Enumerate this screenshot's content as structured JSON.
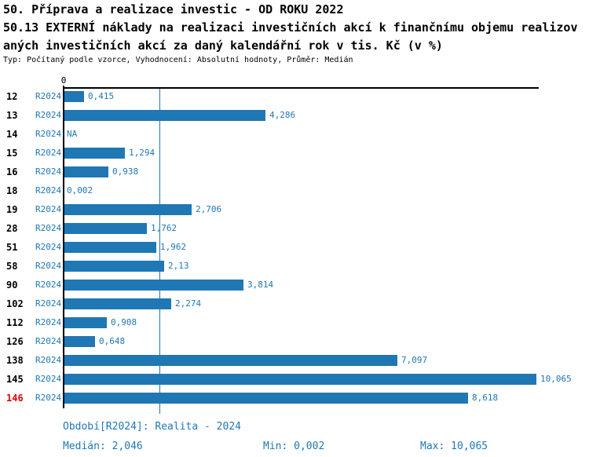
{
  "header": {
    "title_line1": "50. Příprava a realizace investic - OD ROKU 2022",
    "title_line2": "50.13 EXTERNÍ náklady na realizaci investičních akcí k finančnímu objemu realizov",
    "title_line3": "aných investičních akcí za daný kalendářní rok v tis. Kč (v %)",
    "meta": "Typ: Počítaný podle vzorce, Vyhodnocení: Absolutní hodnoty, Průměr: Medián"
  },
  "colors": {
    "bar": "#1f77b4",
    "blue_text": "#1f77b4",
    "highlight": "#e60000",
    "axis": "#000000"
  },
  "chart_data": {
    "type": "bar",
    "orientation": "horizontal",
    "title": "50.13 EXTERNÍ náklady na realizaci investičních akcí k finančnímu objemu realizovaných investičních akcí za daný kalendářní rok v tis. Kč (v %)",
    "categories": [
      "12",
      "13",
      "14",
      "15",
      "16",
      "18",
      "19",
      "28",
      "51",
      "58",
      "90",
      "102",
      "112",
      "126",
      "138",
      "145",
      "146"
    ],
    "period_label": "R2024",
    "values": [
      0.415,
      4.286,
      null,
      1.294,
      0.938,
      0.002,
      2.706,
      1.762,
      1.962,
      2.13,
      3.814,
      2.274,
      0.908,
      0.648,
      7.097,
      10.065,
      8.618
    ],
    "value_labels": [
      "0,415",
      "4,286",
      "NA",
      "1,294",
      "0,938",
      "0,002",
      "2,706",
      "1,762",
      "1,962",
      "2,13",
      "3,814",
      "2,274",
      "0,908",
      "0,648",
      "7,097",
      "10,065",
      "8,618"
    ],
    "highlighted_category": "146",
    "median_value": 2.046,
    "x_tick_labels": [
      "0"
    ],
    "xlim": [
      0,
      10.13
    ],
    "grid": false,
    "legend": false
  },
  "footer": {
    "period": "Období[R2024]: Realita - 2024",
    "median": "Medián: 2,046",
    "min": "Min: 0,002",
    "max": "Max: 10,065"
  }
}
